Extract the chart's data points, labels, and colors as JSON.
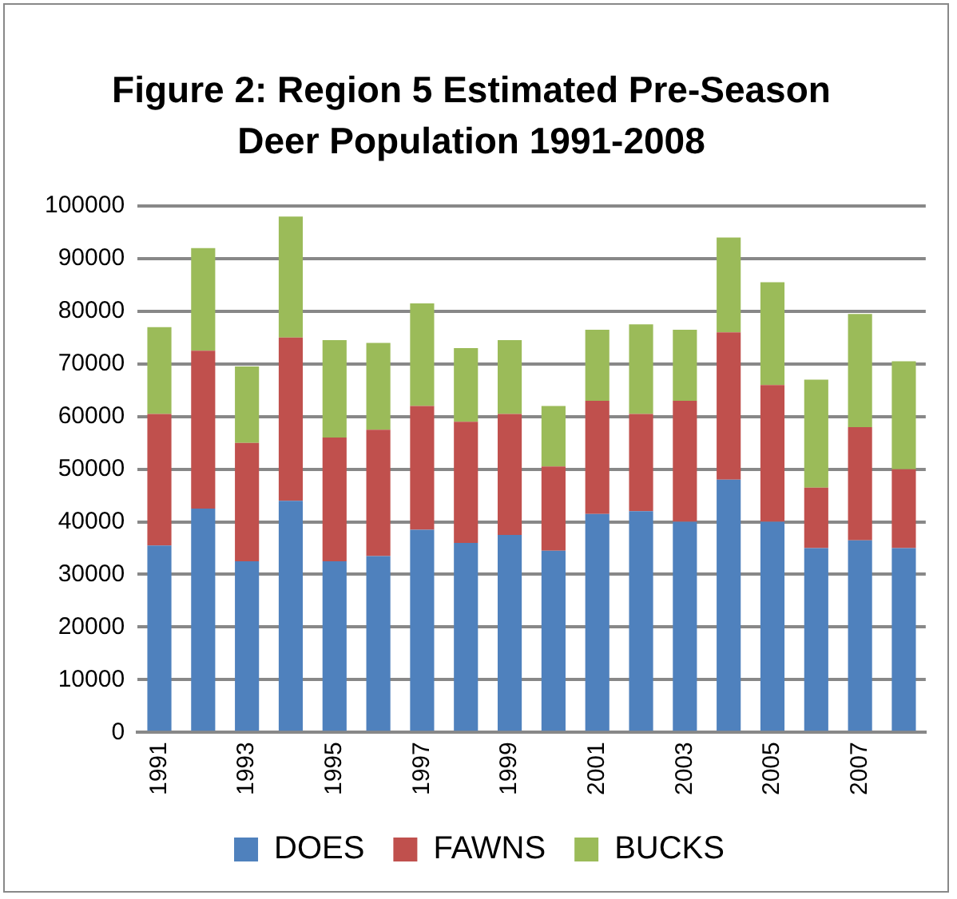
{
  "chart_data": {
    "type": "bar",
    "title": "Figure 2:  Region 5 Estimated Pre-Season Deer Population 1991-2008",
    "categories": [
      "1991",
      null,
      "1993",
      null,
      "1995",
      null,
      "1997",
      null,
      "1999",
      null,
      "2001",
      null,
      "2003",
      null,
      "2005",
      null,
      "2007",
      null
    ],
    "stacked": true,
    "series": [
      {
        "name": "DOES",
        "color": "#4f81bd",
        "values": [
          35500,
          42500,
          32500,
          44000,
          32500,
          33500,
          38500,
          36000,
          37500,
          34500,
          41500,
          42000,
          40000,
          48000,
          40000,
          35000,
          36500,
          35000
        ]
      },
      {
        "name": "FAWNS",
        "color": "#c0504d",
        "values": [
          25000,
          30000,
          22500,
          31000,
          23500,
          24000,
          23500,
          23000,
          23000,
          16000,
          21500,
          18500,
          23000,
          28000,
          26000,
          11500,
          21500,
          15000
        ]
      },
      {
        "name": "BUCKS",
        "color": "#9bbb59",
        "values": [
          16500,
          19500,
          14500,
          23000,
          18500,
          16500,
          19500,
          14000,
          14000,
          11500,
          13500,
          17000,
          13500,
          18000,
          19500,
          20500,
          21500,
          20500
        ]
      }
    ],
    "ylim": [
      0,
      100000
    ],
    "yticks": [
      0,
      10000,
      20000,
      30000,
      40000,
      50000,
      60000,
      70000,
      80000,
      90000,
      100000
    ],
    "grid": "y",
    "legend": "bottom"
  }
}
